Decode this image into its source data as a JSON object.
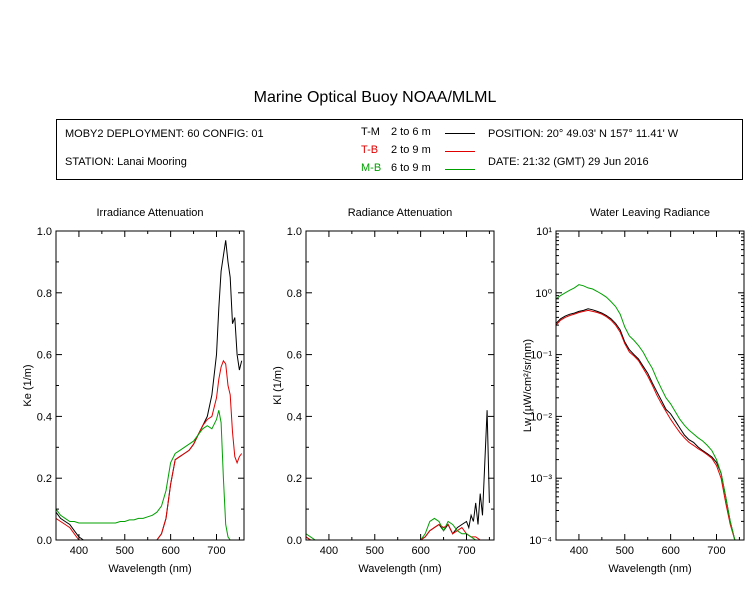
{
  "title": "Marine Optical Buoy NOAA/MLML",
  "info": {
    "deployment": "MOBY2 DEPLOYMENT: 60 CONFIG: 01",
    "station": "STATION: Lanai Mooring",
    "position": "POSITION: 20° 49.03' N   157° 11.41' W",
    "date": "DATE: 21:32 (GMT) 29 Jun 2016",
    "legend": [
      {
        "label": "T-M",
        "range": "2 to 6  m",
        "color": "#000000"
      },
      {
        "label": "T-B",
        "range": "2 to 9  m",
        "color": "#e00000"
      },
      {
        "label": "M-B",
        "range": "6 to 9  m",
        "color": "#00a000"
      }
    ]
  },
  "chart_data": [
    {
      "type": "line",
      "title": "Irradiance Attenuation",
      "xlabel": "Wavelength (nm)",
      "ylabel": "Ke  (1/m)",
      "xlim": [
        350,
        760
      ],
      "ylim": [
        0,
        1.0
      ],
      "xticks": [
        400,
        500,
        600,
        700
      ],
      "yticks": [
        0.0,
        0.2,
        0.4,
        0.6,
        0.8,
        1.0
      ],
      "ytick_labels": [
        "0.0",
        "0.2",
        "0.4",
        "0.6",
        "0.8",
        "1.0"
      ],
      "series": [
        {
          "name": "T-M",
          "color": "#000000",
          "x": [
            350,
            360,
            370,
            380,
            390,
            400,
            410,
            420,
            430,
            440,
            450,
            460,
            470,
            480,
            490,
            500,
            510,
            520,
            530,
            540,
            550,
            560,
            570,
            580,
            590,
            600,
            610,
            620,
            630,
            640,
            650,
            660,
            670,
            680,
            690,
            700,
            705,
            710,
            715,
            720,
            725,
            730,
            735,
            740,
            745,
            750,
            755
          ],
          "y": [
            0.09,
            0.07,
            0.06,
            0.05,
            0.03,
            0.01,
            0,
            0,
            0,
            0,
            0,
            0,
            0,
            0,
            0,
            0,
            0,
            0,
            0,
            0,
            0,
            0,
            0,
            0.02,
            0.07,
            0.18,
            0.26,
            0.27,
            0.28,
            0.29,
            0.31,
            0.34,
            0.37,
            0.4,
            0.47,
            0.6,
            0.75,
            0.87,
            0.92,
            0.97,
            0.9,
            0.85,
            0.7,
            0.72,
            0.6,
            0.55,
            0.58
          ]
        },
        {
          "name": "T-B",
          "color": "#e00000",
          "x": [
            350,
            360,
            370,
            380,
            390,
            400,
            410,
            420,
            430,
            440,
            450,
            460,
            470,
            480,
            490,
            500,
            510,
            520,
            530,
            540,
            550,
            560,
            570,
            580,
            590,
            600,
            610,
            620,
            630,
            640,
            650,
            660,
            670,
            680,
            690,
            700,
            705,
            710,
            715,
            720,
            725,
            730,
            735,
            740,
            745,
            750,
            755
          ],
          "y": [
            0.07,
            0.06,
            0.05,
            0.04,
            0.02,
            0,
            0,
            0,
            0,
            0,
            0,
            0,
            0,
            0,
            0,
            0,
            0,
            0,
            0,
            0,
            0,
            0,
            0,
            0.02,
            0.07,
            0.18,
            0.26,
            0.27,
            0.28,
            0.29,
            0.31,
            0.34,
            0.37,
            0.39,
            0.4,
            0.46,
            0.52,
            0.56,
            0.58,
            0.57,
            0.5,
            0.47,
            0.35,
            0.27,
            0.25,
            0.27,
            0.28
          ]
        },
        {
          "name": "M-B",
          "color": "#00a000",
          "x": [
            350,
            360,
            370,
            380,
            390,
            400,
            410,
            420,
            430,
            440,
            450,
            460,
            470,
            480,
            490,
            500,
            510,
            520,
            530,
            540,
            550,
            560,
            570,
            580,
            590,
            600,
            610,
            620,
            630,
            640,
            650,
            660,
            670,
            680,
            690,
            700,
            705,
            710,
            715,
            720,
            725,
            730,
            735,
            740
          ],
          "y": [
            0.1,
            0.08,
            0.07,
            0.06,
            0.06,
            0.055,
            0.055,
            0.055,
            0.055,
            0.055,
            0.055,
            0.055,
            0.055,
            0.055,
            0.06,
            0.06,
            0.065,
            0.065,
            0.07,
            0.07,
            0.075,
            0.08,
            0.09,
            0.11,
            0.16,
            0.25,
            0.28,
            0.29,
            0.3,
            0.31,
            0.32,
            0.34,
            0.36,
            0.37,
            0.36,
            0.39,
            0.42,
            0.38,
            0.2,
            0.05,
            0.01,
            0,
            0,
            0
          ]
        }
      ]
    },
    {
      "type": "line",
      "title": "Radiance Attenuation",
      "xlabel": "Wavelength (nm)",
      "ylabel": "Kl  (1/m)",
      "xlim": [
        350,
        760
      ],
      "ylim": [
        0,
        1.0
      ],
      "xticks": [
        400,
        500,
        600,
        700
      ],
      "yticks": [
        0.0,
        0.2,
        0.4,
        0.6,
        0.8,
        1.0
      ],
      "ytick_labels": [
        "0.0",
        "0.2",
        "0.4",
        "0.6",
        "0.8",
        "1.0"
      ],
      "series": [
        {
          "name": "T-M",
          "color": "#000000",
          "x": [
            350,
            360,
            370,
            600,
            610,
            620,
            630,
            640,
            650,
            660,
            670,
            680,
            690,
            700,
            705,
            710,
            715,
            720,
            725,
            730,
            735,
            740,
            745,
            750
          ],
          "y": [
            0.01,
            0,
            0,
            0,
            0.01,
            0.03,
            0.04,
            0.05,
            0.03,
            0.05,
            0.02,
            0.04,
            0.05,
            0.06,
            0.04,
            0.08,
            0.06,
            0.12,
            0.05,
            0.15,
            0.08,
            0.25,
            0.42,
            0.12
          ]
        },
        {
          "name": "T-B",
          "color": "#e00000",
          "x": [
            350,
            360,
            600,
            610,
            620,
            630,
            640,
            650,
            660,
            670,
            680,
            690,
            700,
            710,
            720,
            730,
            740
          ],
          "y": [
            0.01,
            0,
            0,
            0.01,
            0.03,
            0.04,
            0.05,
            0.04,
            0.05,
            0.02,
            0.03,
            0.04,
            0.02,
            0.01,
            0.01,
            0,
            0
          ]
        },
        {
          "name": "M-B",
          "color": "#00a000",
          "x": [
            350,
            360,
            370,
            600,
            610,
            620,
            630,
            640,
            650,
            660,
            670,
            680,
            690,
            700,
            710,
            720,
            730
          ],
          "y": [
            0.02,
            0.01,
            0,
            0,
            0.02,
            0.06,
            0.07,
            0.06,
            0.03,
            0.06,
            0.05,
            0.03,
            0.02,
            0.02,
            0.01,
            0,
            0
          ]
        }
      ]
    },
    {
      "type": "line",
      "title": "Water Leaving Radiance",
      "xlabel": "Wavelength (nm)",
      "ylabel": "Lw  (µW/cm²/sr/nm)",
      "xlim": [
        350,
        760
      ],
      "ylim": [
        0.0001,
        10
      ],
      "yscale": "log",
      "xticks": [
        400,
        500,
        600,
        700
      ],
      "yticks": [
        0.0001,
        0.001,
        0.01,
        0.1,
        1,
        10
      ],
      "ytick_labels": [
        "10⁻⁴",
        "10⁻³",
        "10⁻²",
        "10⁻¹",
        "10⁰",
        "10¹"
      ],
      "series": [
        {
          "name": "T-M",
          "color": "#000000",
          "x": [
            350,
            360,
            370,
            380,
            390,
            400,
            410,
            420,
            430,
            440,
            450,
            460,
            470,
            480,
            490,
            500,
            510,
            520,
            530,
            540,
            550,
            560,
            570,
            580,
            590,
            600,
            610,
            620,
            630,
            640,
            650,
            660,
            670,
            680,
            690,
            700,
            710,
            720,
            730,
            740
          ],
          "y": [
            0.32,
            0.38,
            0.42,
            0.45,
            0.47,
            0.5,
            0.52,
            0.55,
            0.53,
            0.5,
            0.47,
            0.43,
            0.38,
            0.32,
            0.25,
            0.16,
            0.12,
            0.1,
            0.085,
            0.065,
            0.05,
            0.035,
            0.025,
            0.018,
            0.013,
            0.011,
            0.0085,
            0.0065,
            0.005,
            0.0042,
            0.0038,
            0.0032,
            0.0028,
            0.0025,
            0.0022,
            0.0018,
            0.0012,
            0.0005,
            0.0002,
            0.0001
          ]
        },
        {
          "name": "T-B",
          "color": "#e00000",
          "x": [
            350,
            360,
            370,
            380,
            390,
            400,
            410,
            420,
            430,
            440,
            450,
            460,
            470,
            480,
            490,
            500,
            510,
            520,
            530,
            540,
            550,
            560,
            570,
            580,
            590,
            600,
            610,
            620,
            630,
            640,
            650,
            660,
            670,
            680,
            690,
            700,
            710,
            720,
            730,
            740
          ],
          "y": [
            0.3,
            0.36,
            0.4,
            0.43,
            0.45,
            0.48,
            0.5,
            0.52,
            0.5,
            0.48,
            0.45,
            0.41,
            0.36,
            0.3,
            0.23,
            0.15,
            0.11,
            0.095,
            0.08,
            0.06,
            0.045,
            0.032,
            0.022,
            0.016,
            0.012,
            0.009,
            0.007,
            0.0055,
            0.0045,
            0.0038,
            0.0034,
            0.003,
            0.0027,
            0.0024,
            0.0021,
            0.0016,
            0.001,
            0.0004,
            0.00018,
            0.0001
          ]
        },
        {
          "name": "M-B",
          "color": "#00a000",
          "x": [
            350,
            360,
            370,
            380,
            390,
            400,
            410,
            420,
            430,
            440,
            450,
            460,
            470,
            480,
            490,
            500,
            510,
            520,
            530,
            540,
            550,
            560,
            570,
            580,
            590,
            600,
            610,
            620,
            630,
            640,
            650,
            660,
            670,
            680,
            690,
            700,
            710,
            720,
            730,
            740
          ],
          "y": [
            0.8,
            0.9,
            1.0,
            1.1,
            1.2,
            1.35,
            1.3,
            1.2,
            1.15,
            1.05,
            0.95,
            0.85,
            0.72,
            0.6,
            0.45,
            0.28,
            0.2,
            0.17,
            0.14,
            0.11,
            0.08,
            0.06,
            0.04,
            0.028,
            0.02,
            0.016,
            0.012,
            0.009,
            0.0072,
            0.006,
            0.0052,
            0.0045,
            0.004,
            0.0034,
            0.0028,
            0.002,
            0.0012,
            0.0005,
            0.0002,
            0.0001
          ]
        }
      ]
    }
  ]
}
